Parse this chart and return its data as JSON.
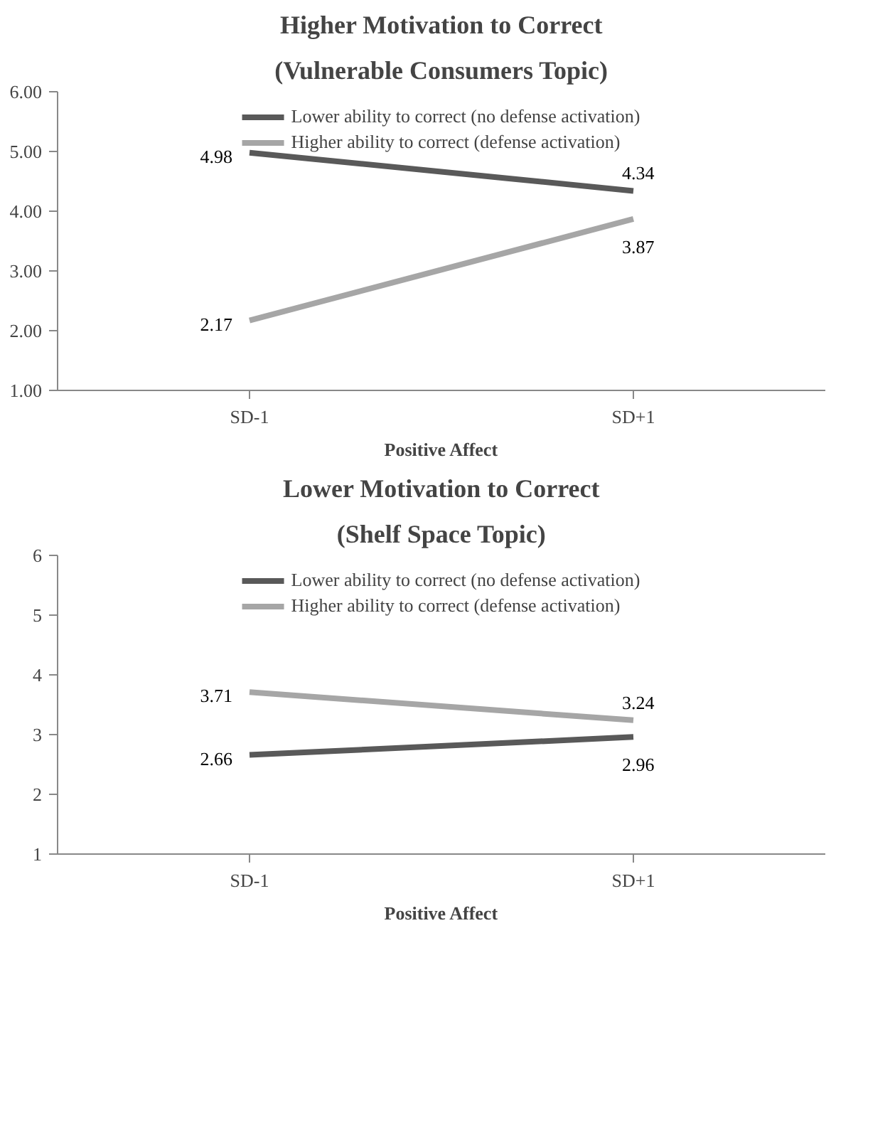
{
  "chart_data": [
    {
      "type": "line",
      "title": "Higher Motivation to Correct",
      "subtitle": "(Vulnerable Consumers Topic)",
      "xlabel": "Positive Affect",
      "categories": [
        "SD-1",
        "SD+1"
      ],
      "series": [
        {
          "name": "Lower ability to correct (no defense activation)",
          "color": "#595959",
          "values": [
            4.98,
            4.34
          ]
        },
        {
          "name": "Higher ability to correct (defense activation)",
          "color": "#a6a6a6",
          "values": [
            2.17,
            3.87
          ]
        }
      ],
      "ylim": [
        1,
        6
      ],
      "yticks": [
        {
          "value": 1,
          "label": "1.00"
        },
        {
          "value": 2,
          "label": "2.00"
        },
        {
          "value": 3,
          "label": "3.00"
        },
        {
          "value": 4,
          "label": "4.00"
        },
        {
          "value": 5,
          "label": "5.00"
        },
        {
          "value": 6,
          "label": "6.00"
        }
      ],
      "data_labels": true,
      "legend": "top",
      "grid": false,
      "marker": "none",
      "line_style": "solid"
    },
    {
      "type": "line",
      "title": "Lower Motivation to Correct",
      "subtitle": "(Shelf Space Topic)",
      "xlabel": "Positive Affect",
      "categories": [
        "SD-1",
        "SD+1"
      ],
      "series": [
        {
          "name": "Lower ability to correct (no defense activation)",
          "color": "#595959",
          "values": [
            2.66,
            2.96
          ]
        },
        {
          "name": "Higher ability to correct (defense activation)",
          "color": "#a6a6a6",
          "values": [
            3.71,
            3.24
          ]
        }
      ],
      "ylim": [
        1,
        6
      ],
      "yticks": [
        1,
        2,
        3,
        4,
        5,
        6
      ],
      "data_labels": true,
      "legend": "top",
      "grid": false,
      "marker": "none",
      "line_style": "solid"
    }
  ]
}
